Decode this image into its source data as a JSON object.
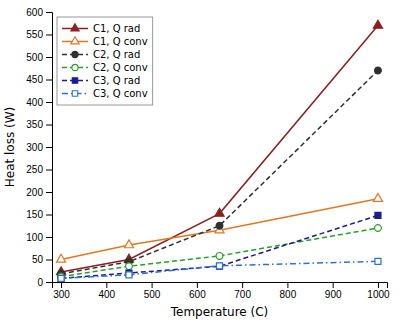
{
  "chart_data": {
    "type": "line",
    "x": [
      300,
      450,
      650,
      1000
    ],
    "series": [
      {
        "name": "C1, Q rad",
        "color": "#8B2020",
        "marker": "triangle",
        "line_style": "solid",
        "values": [
          22,
          50,
          152,
          570
        ]
      },
      {
        "name": "C1, Q conv",
        "color": "#E07820",
        "marker": "triangle-open",
        "line_style": "solid",
        "values": [
          50,
          82,
          115,
          185
        ]
      },
      {
        "name": "C2, Q rad",
        "color": "#303030",
        "marker": "circle",
        "line_style": "dashed",
        "values": [
          18,
          45,
          125,
          470
        ]
      },
      {
        "name": "C2, Q conv",
        "color": "#28A028",
        "marker": "circle-open",
        "line_style": "dashed",
        "values": [
          12,
          35,
          58,
          120
        ]
      },
      {
        "name": "C3, Q rad",
        "color": "#1C1C8C",
        "marker": "square",
        "line_style": "dashed",
        "values": [
          8,
          20,
          35,
          148
        ]
      },
      {
        "name": "C3, Q conv",
        "color": "#3070D0",
        "marker": "square-open",
        "line_style": "dashdot",
        "values": [
          8,
          16,
          36,
          46
        ]
      }
    ],
    "xlabel": "Temperature (C)",
    "ylabel": "Heat loss (W)",
    "xlim": [
      280,
      1020
    ],
    "ylim": [
      0,
      600
    ],
    "xticks": [
      300,
      400,
      500,
      600,
      700,
      800,
      900,
      1000
    ],
    "yticks": [
      0,
      50,
      100,
      150,
      200,
      250,
      300,
      350,
      400,
      450,
      500,
      550,
      600
    ],
    "legend": "upper-left"
  }
}
